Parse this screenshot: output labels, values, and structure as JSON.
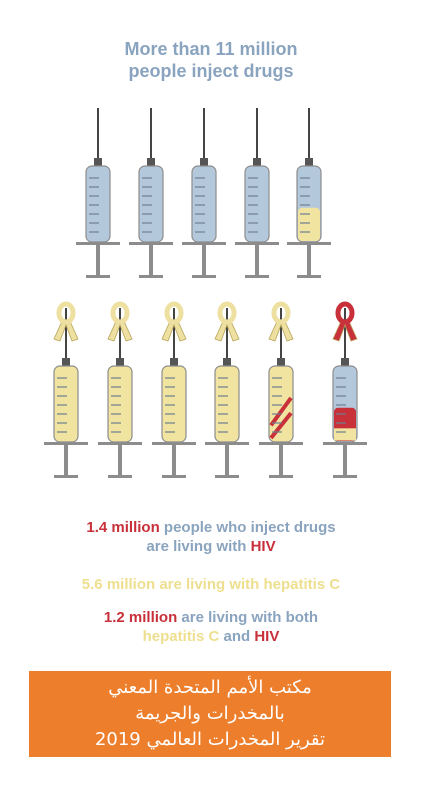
{
  "headline": {
    "line1": "More than 11 million",
    "line2": "people inject drugs"
  },
  "colors": {
    "barrel_blue": "#b4c8dc",
    "fill_yellow": "#f1e3a0",
    "hiv_red": "#c8303a",
    "gray": "#8c8c8c",
    "banner_orange": "#ec7e2c"
  },
  "icons": {
    "ribbon": "awareness-ribbon-icon",
    "syringe": "syringe-icon"
  },
  "stats": {
    "hiv": {
      "value": "1.4 million",
      "mid": " people who inject drugs",
      "line2_pre": "are living with ",
      "label": "HIV"
    },
    "hepc": {
      "text": "5.6 million are living with hepatitis C"
    },
    "both": {
      "value": "1.2 million",
      "mid": " are living with both",
      "hep": "hepatitis C",
      "and": " and ",
      "hiv": "HIV"
    }
  },
  "banner": {
    "line1": "مكتب الأمم المتحدة المعني",
    "line2": "بالمخدرات والجريمة",
    "line3": "تقرير المخدرات العالمي 2019"
  }
}
